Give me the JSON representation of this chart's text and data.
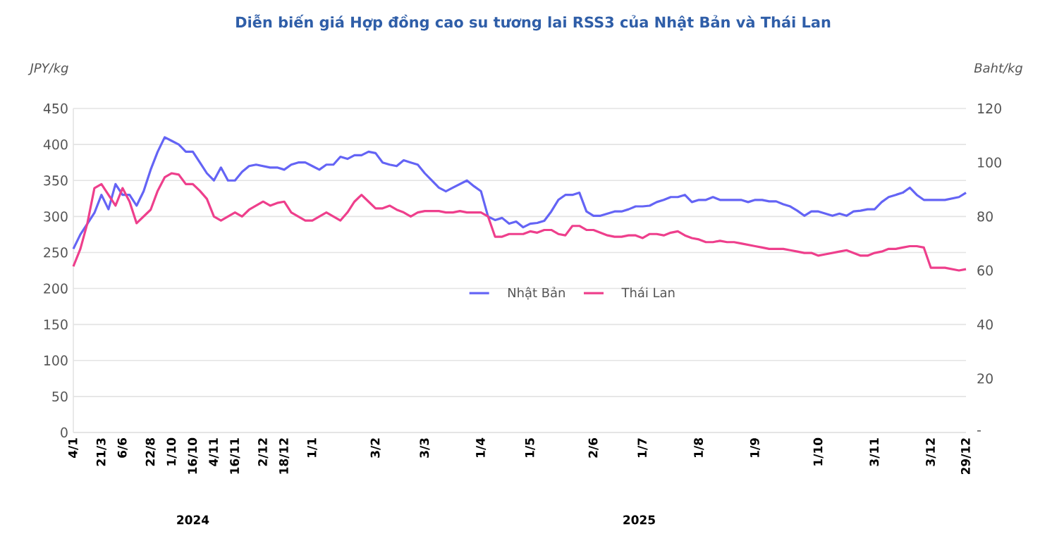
{
  "chart_data": {
    "type": "line",
    "title": "Diễn biến giá Hợp đồng cao su tương lai RSS3 của Nhật Bản và Thái Lan",
    "ylabel": "JPY/kg",
    "y2label": "Baht/kg",
    "categories": [
      "4/1",
      null,
      null,
      null,
      "21/3",
      null,
      null,
      "6/6",
      null,
      null,
      null,
      "22/8",
      null,
      null,
      "1/10",
      null,
      null,
      "16/10",
      null,
      null,
      "4/11",
      null,
      null,
      "16/11",
      null,
      null,
      null,
      "2/12",
      null,
      null,
      "18/12",
      null,
      null,
      null,
      "1/1",
      null,
      null,
      null,
      null,
      null,
      null,
      null,
      null,
      "3/2",
      null,
      null,
      null,
      null,
      null,
      null,
      "3/3",
      null,
      null,
      null,
      null,
      null,
      null,
      null,
      "1/4",
      null,
      null,
      null,
      null,
      null,
      null,
      "1/5",
      null,
      null,
      null,
      null,
      null,
      null,
      null,
      null,
      "2/6",
      null,
      null,
      null,
      null,
      null,
      null,
      "1/7",
      null,
      null,
      null,
      null,
      null,
      null,
      null,
      "1/8",
      null,
      null,
      null,
      null,
      null,
      null,
      null,
      "1/9",
      null,
      null,
      null,
      null,
      null,
      null,
      null,
      null,
      "1/10",
      null,
      null,
      null,
      null,
      null,
      null,
      null,
      "3/11",
      null,
      null,
      null,
      null,
      null,
      null,
      null,
      "3/12",
      null,
      null,
      null,
      null,
      "29/12"
    ],
    "series": [
      {
        "name": "Nhật Bản",
        "color": "#6464f5",
        "values": [
          255,
          275,
          290,
          305,
          330,
          310,
          345,
          330,
          330,
          315,
          335,
          365,
          390,
          410,
          405,
          400,
          390,
          390,
          375,
          360,
          350,
          368,
          350,
          350,
          362,
          370,
          372,
          370,
          368,
          368,
          365,
          372,
          375,
          375,
          370,
          365,
          372,
          372,
          383,
          380,
          385,
          385,
          390,
          388,
          375,
          372,
          370,
          378,
          375,
          372,
          360,
          350,
          340,
          335,
          340,
          345,
          350,
          342,
          335,
          300,
          295,
          298,
          290,
          293,
          285,
          290,
          291,
          294,
          307,
          323,
          330,
          330,
          333,
          307,
          301,
          301,
          304,
          307,
          307,
          310,
          314,
          314,
          315,
          320,
          323,
          327,
          327,
          330,
          320,
          323,
          323,
          327,
          323,
          323,
          323,
          323,
          320,
          323,
          323,
          321,
          321,
          317,
          314,
          308,
          301,
          307,
          307,
          304,
          301,
          304,
          301,
          307,
          308,
          310,
          310,
          320,
          327,
          330,
          333,
          340,
          330,
          323,
          323,
          323,
          323,
          325,
          327,
          333
        ]
      },
      {
        "name": "Thái Lan",
        "color": "#ee3f8c",
        "axis": "y2",
        "values": [
          61.5,
          68,
          77.5,
          90.5,
          92,
          88,
          84,
          90.5,
          85.5,
          77.5,
          80,
          82.5,
          89.5,
          94.5,
          96,
          95.5,
          92,
          92,
          89.5,
          86.5,
          80,
          78.5,
          80,
          81.5,
          80,
          82.5,
          84,
          85.5,
          84,
          85,
          85.5,
          81.5,
          80,
          78.5,
          78.5,
          80,
          81.5,
          80,
          78.5,
          81.5,
          85.5,
          88,
          85.5,
          83,
          83,
          84,
          82.5,
          81.5,
          80,
          81.5,
          82,
          82,
          82,
          81.5,
          81.5,
          82,
          81.5,
          81.5,
          81.5,
          80,
          72.5,
          72.5,
          73.5,
          73.5,
          73.5,
          74.5,
          74,
          75,
          75,
          73.5,
          73,
          76.5,
          76.5,
          75,
          75,
          74,
          73,
          72.5,
          72.5,
          73,
          73,
          72,
          73.5,
          73.5,
          73,
          74,
          74.5,
          73,
          72,
          71.5,
          70.5,
          70.5,
          71,
          70.5,
          70.5,
          70,
          69.5,
          69,
          68.5,
          68,
          68,
          68,
          67.5,
          67,
          66.5,
          66.5,
          65.5,
          66,
          66.5,
          67,
          67.5,
          66.5,
          65.5,
          65.5,
          66.5,
          67,
          68,
          68,
          68.5,
          69,
          69,
          68.5,
          61,
          61,
          61,
          60.5,
          60,
          60.5
        ]
      }
    ],
    "ylim": [
      0,
      450
    ],
    "yticks": [
      0,
      50,
      100,
      150,
      200,
      250,
      300,
      350,
      400,
      450
    ],
    "y2lim": [
      0,
      120
    ],
    "y2ticks": [
      {
        "value": 0,
        "label": "-"
      },
      20,
      40,
      60,
      80,
      100,
      120
    ],
    "grid": "y",
    "legend": "center",
    "marker": "none",
    "line_style": "solid",
    "annotations": [
      "2024",
      "2025"
    ]
  }
}
